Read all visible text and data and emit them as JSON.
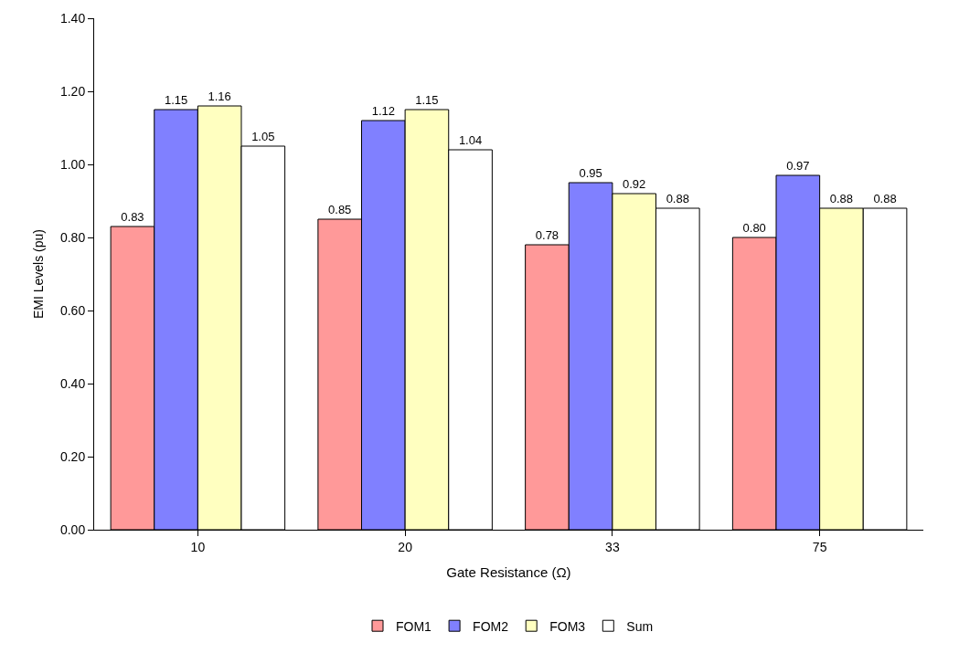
{
  "chart_data": {
    "type": "bar",
    "xlabel": "Gate Resistance (Ω)",
    "ylabel": "EMI Levels (pu)",
    "categories": [
      "10",
      "20",
      "33",
      "75"
    ],
    "series": [
      {
        "name": "FOM1",
        "color": "#ff9999",
        "values": [
          0.83,
          0.85,
          0.78,
          0.8
        ],
        "value_labels": [
          "0.83",
          "0.85",
          "0.78",
          "0.80"
        ]
      },
      {
        "name": "FOM2",
        "color": "#8080ff",
        "values": [
          1.15,
          1.12,
          0.95,
          0.97
        ],
        "value_labels": [
          "1.15",
          "1.12",
          "0.95",
          "0.97"
        ]
      },
      {
        "name": "FOM3",
        "color": "#ffffc0",
        "values": [
          1.16,
          1.15,
          0.92,
          0.88
        ],
        "value_labels": [
          "1.16",
          "1.15",
          "0.92",
          "0.88"
        ]
      },
      {
        "name": "Sum",
        "color": "#ffffff",
        "values": [
          1.05,
          1.04,
          0.88,
          0.88
        ],
        "value_labels": [
          "1.05",
          "1.04",
          "0.88",
          "0.88"
        ]
      }
    ],
    "ylim": [
      0,
      1.4
    ],
    "yticks": [
      {
        "value": 0,
        "label": "0.00"
      },
      {
        "value": 0.2,
        "label": "0.20"
      },
      {
        "value": 0.4,
        "label": "0.40"
      },
      {
        "value": 0.6,
        "label": "0.60"
      },
      {
        "value": 0.8,
        "label": "0.80"
      },
      {
        "value": 1.0,
        "label": "1.00"
      },
      {
        "value": 1.2,
        "label": "1.20"
      },
      {
        "value": 1.4,
        "label": "1.40"
      }
    ],
    "legend": "bottom"
  }
}
